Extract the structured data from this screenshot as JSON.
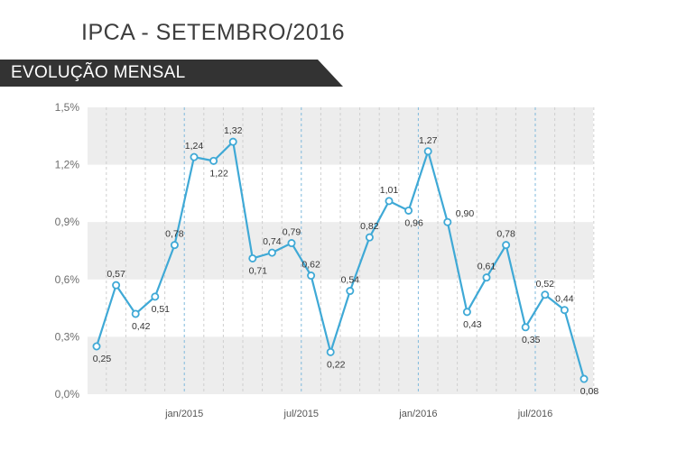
{
  "title": "IPCA - SETEMBRO/2016",
  "subtitle": "EVOLUÇÃO MENSAL",
  "colors": {
    "line": "#3fa9d6",
    "band_gray": "#ededed",
    "banner": "#333333",
    "dashed_vertical": "#cfcfcf",
    "year_marker": "#7fb9dc"
  },
  "chart_data": {
    "type": "line",
    "title": "IPCA - SETEMBRO/2016",
    "subtitle": "EVOLUÇÃO MENSAL",
    "ylim": [
      0,
      1.5
    ],
    "yticks": [
      "0,0%",
      "0,3%",
      "0,6%",
      "0,9%",
      "1,2%",
      "1,5%"
    ],
    "ytick_values": [
      0,
      0.3,
      0.6,
      0.9,
      1.2,
      1.5
    ],
    "x_ticks": [
      {
        "index": 4,
        "label": "jan/2015"
      },
      {
        "index": 10,
        "label": "jul/2015"
      },
      {
        "index": 16,
        "label": "jan/2016"
      },
      {
        "index": 22,
        "label": "jul/2016"
      }
    ],
    "values": [
      0.25,
      0.57,
      0.42,
      0.51,
      0.78,
      1.24,
      1.22,
      1.32,
      0.71,
      0.74,
      0.79,
      0.62,
      0.22,
      0.54,
      0.82,
      1.01,
      0.96,
      1.27,
      0.9,
      0.43,
      0.61,
      0.78,
      0.35,
      0.52,
      0.44,
      0.08
    ],
    "labels": [
      "0,25",
      "0,57",
      "0,42",
      "0,51",
      "0,78",
      "1,24",
      "1,22",
      "1,32",
      "0,71",
      "0,74",
      "0,79",
      "0,62",
      "0,22",
      "0,54",
      "0,82",
      "1,01",
      "0,96",
      "1,27",
      "0,90",
      "0,43",
      "0,61",
      "0,78",
      "0,35",
      "0,52",
      "0,44",
      "0,08"
    ],
    "label_positions": [
      "below",
      "above",
      "below",
      "below",
      "above",
      "above",
      "below",
      "above",
      "below",
      "above",
      "above",
      "above",
      "below",
      "above",
      "above",
      "above",
      "below",
      "above",
      "right",
      "below",
      "above",
      "above",
      "below",
      "above",
      "above",
      "below"
    ],
    "grid": true,
    "legend": "none"
  }
}
